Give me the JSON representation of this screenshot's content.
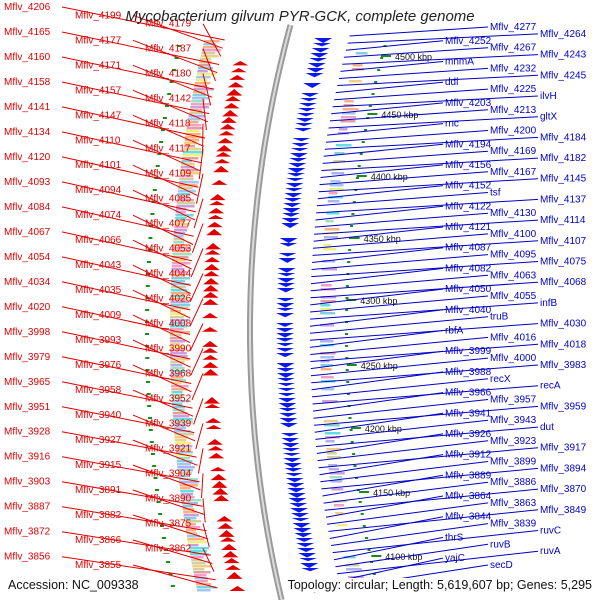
{
  "title": "Mycobacterium gilvum PYR-GCK, complete genome",
  "footer": {
    "accession": "Accession: NC_009338",
    "summary": "Topology: circular; Length: 5,619,607 bp; Genes: 5,295"
  },
  "colors": {
    "left_labels": "#e00000",
    "right_labels": "#0000c8",
    "backbone": "#9a9a9a",
    "tick_marks": "#1a8a1a",
    "forward_genes": "#e00000",
    "reverse_genes": "#0a1aee"
  },
  "scale_labels": [
    "4500 kbp",
    "4450 kbp",
    "4400 kbp",
    "4350 kbp",
    "4300 kbp",
    "4250 kbp",
    "4200 kbp",
    "4150 kbp",
    "4100 kbp"
  ],
  "left_labels": [
    "Mflv_4206",
    "Mflv_4199",
    "Mflv_4179",
    "Mflv_4165",
    "Mflv_4177",
    "Mflv_4187",
    "Mflv_4160",
    "Mflv_4171",
    "Mflv_4180",
    "Mflv_4158",
    "Mflv_4157",
    "Mflv_4142",
    "Mflv_4141",
    "Mflv_4147",
    "Mflv_4118",
    "Mflv_4134",
    "Mflv_4110",
    "Mflv_4117",
    "Mflv_4120",
    "Mflv_4101",
    "Mflv_4109",
    "Mflv_4093",
    "Mflv_4094",
    "Mflv_4085",
    "Mflv_4084",
    "Mflv_4074",
    "Mflv_4077",
    "Mflv_4067",
    "Mflv_4066",
    "Mflv_4053",
    "Mflv_4054",
    "Mflv_4043",
    "Mflv_4044",
    "Mflv_4034",
    "Mflv_4035",
    "Mflv_4026",
    "Mflv_4020",
    "Mflv_4009",
    "Mflv_4008",
    "Mflv_3998",
    "Mflv_3993",
    "Mflv_3990",
    "Mflv_3979",
    "Mflv_3976",
    "Mflv_3968",
    "Mflv_3965",
    "Mflv_3958",
    "Mflv_3952",
    "Mflv_3951",
    "Mflv_3940",
    "Mflv_3939",
    "Mflv_3928",
    "Mflv_3927",
    "Mflv_3921",
    "Mflv_3916",
    "Mflv_3915",
    "Mflv_3904",
    "Mflv_3903",
    "Mflv_3891",
    "Mflv_3890",
    "Mflv_3887",
    "Mflv_3882",
    "Mflv_3875",
    "Mflv_3872",
    "Mflv_3866",
    "Mflv_3862",
    "Mflv_3856",
    "Mflv_3855"
  ],
  "right_labels": [
    "Mflv_4277",
    "Mflv_4264",
    "Mflv_4252",
    "Mflv_4267",
    "Mflv_4243",
    "mnmA",
    "Mflv_4232",
    "Mflv_4245",
    "ddl",
    "Mflv_4225",
    "ilvH",
    "Mflv_4203",
    "Mflv_4213",
    "gltX",
    "rnc",
    "Mflv_4200",
    "Mflv_4184",
    "Mflv_4194",
    "Mflv_4169",
    "Mflv_4182",
    "Mflv_4156",
    "Mflv_4167",
    "Mflv_4145",
    "Mflv_4152",
    "tsf",
    "Mflv_4137",
    "Mflv_4122",
    "Mflv_4130",
    "Mflv_4114",
    "Mflv_4121",
    "Mflv_4100",
    "Mflv_4107",
    "Mflv_4087",
    "Mflv_4095",
    "Mflv_4075",
    "Mflv_4082",
    "Mflv_4063",
    "Mflv_4068",
    "Mflv_4050",
    "Mflv_4055",
    "infB",
    "Mflv_4040",
    "truB",
    "Mflv_4030",
    "rbfA",
    "Mflv_4016",
    "Mflv_4018",
    "Mflv_3999",
    "Mflv_4000",
    "Mflv_3983",
    "Mflv_3988",
    "recX",
    "recA",
    "Mflv_3966",
    "Mflv_3957",
    "Mflv_3959",
    "Mflv_3941",
    "Mflv_3943",
    "dut",
    "Mflv_3926",
    "Mflv_3923",
    "Mflv_3917",
    "Mflv_3912",
    "Mflv_3899",
    "Mflv_3894",
    "Mflv_3889",
    "Mflv_3886",
    "Mflv_3870",
    "Mflv_3864",
    "Mflv_3863",
    "Mflv_3849",
    "Mflv_3844",
    "Mflv_3839",
    "ruvC",
    "thrS",
    "ruvB",
    "ruvA",
    "yajC",
    "secD"
  ]
}
